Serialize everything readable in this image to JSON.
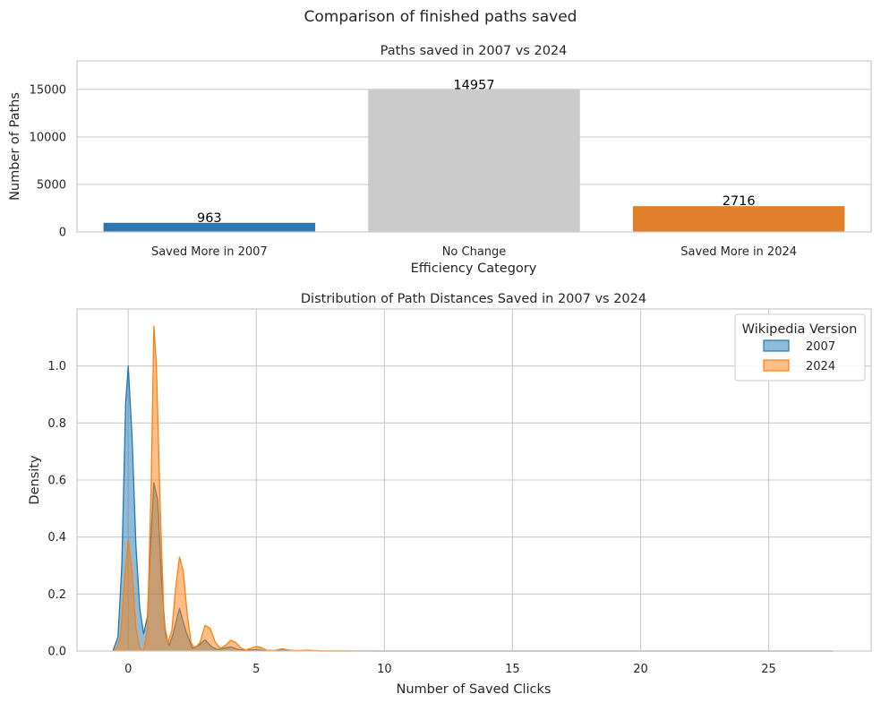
{
  "figure_title": "Comparison of finished paths saved",
  "chart_data": [
    {
      "type": "bar",
      "title": "Paths saved in 2007 vs 2024",
      "xlabel": "Efficiency Category",
      "ylabel": "Number of Paths",
      "categories": [
        "Saved More in 2007",
        "No Change",
        "Saved More in 2024"
      ],
      "values": [
        963,
        14957,
        2716
      ],
      "value_labels": [
        "963",
        "14957",
        "2716"
      ],
      "colors": [
        "#2e77b0",
        "#cbcbcb",
        "#e07e2a"
      ],
      "ylim": [
        0,
        18000
      ],
      "yticks": [
        0,
        5000,
        10000,
        15000
      ],
      "ytick_labels": [
        "0",
        "5000",
        "10000",
        "15000"
      ],
      "grid": true
    },
    {
      "type": "area",
      "title": "Distribution of Path Distances Saved in 2007 vs 2024",
      "xlabel": "Number of Saved Clicks",
      "ylabel": "Density",
      "xlim": [
        -2,
        29
      ],
      "ylim": [
        0,
        1.2
      ],
      "xticks": [
        0,
        5,
        10,
        15,
        20,
        25
      ],
      "xtick_labels": [
        "0",
        "5",
        "10",
        "15",
        "20",
        "25"
      ],
      "yticks": [
        0,
        0.2,
        0.4,
        0.6,
        0.8,
        1.0
      ],
      "ytick_labels": [
        "0.0",
        "0.2",
        "0.4",
        "0.6",
        "0.8",
        "1.0"
      ],
      "grid": true,
      "legend": {
        "title": "Wikipedia Version",
        "placement": "top-right",
        "entries": [
          "2007",
          "2024"
        ]
      },
      "series": [
        {
          "name": "2007",
          "color": "#1f77b4",
          "x": [
            -0.6,
            -0.4,
            -0.25,
            -0.1,
            0.0,
            0.15,
            0.3,
            0.45,
            0.6,
            0.75,
            0.85,
            1.0,
            1.15,
            1.3,
            1.45,
            1.6,
            1.75,
            2.0,
            2.25,
            2.5,
            2.75,
            3.0,
            3.25,
            3.5,
            3.75,
            4.0,
            4.3,
            4.6,
            5.0,
            5.3,
            5.6,
            6.0,
            6.5,
            7.0,
            7.5,
            10,
            15,
            20,
            25,
            27.5
          ],
          "y": [
            0.0,
            0.05,
            0.3,
            0.87,
            1.0,
            0.75,
            0.37,
            0.15,
            0.06,
            0.12,
            0.33,
            0.59,
            0.53,
            0.25,
            0.06,
            0.02,
            0.06,
            0.15,
            0.07,
            0.01,
            0.02,
            0.04,
            0.015,
            0.005,
            0.01,
            0.015,
            0.005,
            0.003,
            0.005,
            0.002,
            0.001,
            0.003,
            0.001,
            0.002,
            0.0,
            0.0,
            0.0,
            0.0,
            0.0,
            0.0
          ]
        },
        {
          "name": "2024",
          "color": "#ff7f0e",
          "x": [
            -0.6,
            -0.45,
            -0.3,
            -0.15,
            0.0,
            0.15,
            0.3,
            0.45,
            0.6,
            0.75,
            0.9,
            1.0,
            1.1,
            1.25,
            1.4,
            1.55,
            1.7,
            1.85,
            2.0,
            2.15,
            2.3,
            2.45,
            2.6,
            2.8,
            3.0,
            3.2,
            3.4,
            3.6,
            3.8,
            4.0,
            4.2,
            4.4,
            4.6,
            4.8,
            5.0,
            5.2,
            5.4,
            5.7,
            6.0,
            6.3,
            6.6,
            7.0,
            7.5,
            10,
            15,
            20,
            25,
            27.5
          ],
          "y": [
            0.0,
            0.01,
            0.05,
            0.24,
            0.39,
            0.28,
            0.08,
            0.01,
            0.0,
            0.08,
            0.6,
            1.14,
            1.0,
            0.5,
            0.1,
            0.03,
            0.07,
            0.22,
            0.33,
            0.28,
            0.13,
            0.03,
            0.01,
            0.03,
            0.09,
            0.08,
            0.03,
            0.01,
            0.02,
            0.038,
            0.03,
            0.01,
            0.004,
            0.01,
            0.016,
            0.012,
            0.003,
            0.002,
            0.008,
            0.003,
            0.001,
            0.003,
            0.001,
            0.0,
            0.0,
            0.0,
            0.0,
            0.0
          ]
        }
      ]
    }
  ]
}
